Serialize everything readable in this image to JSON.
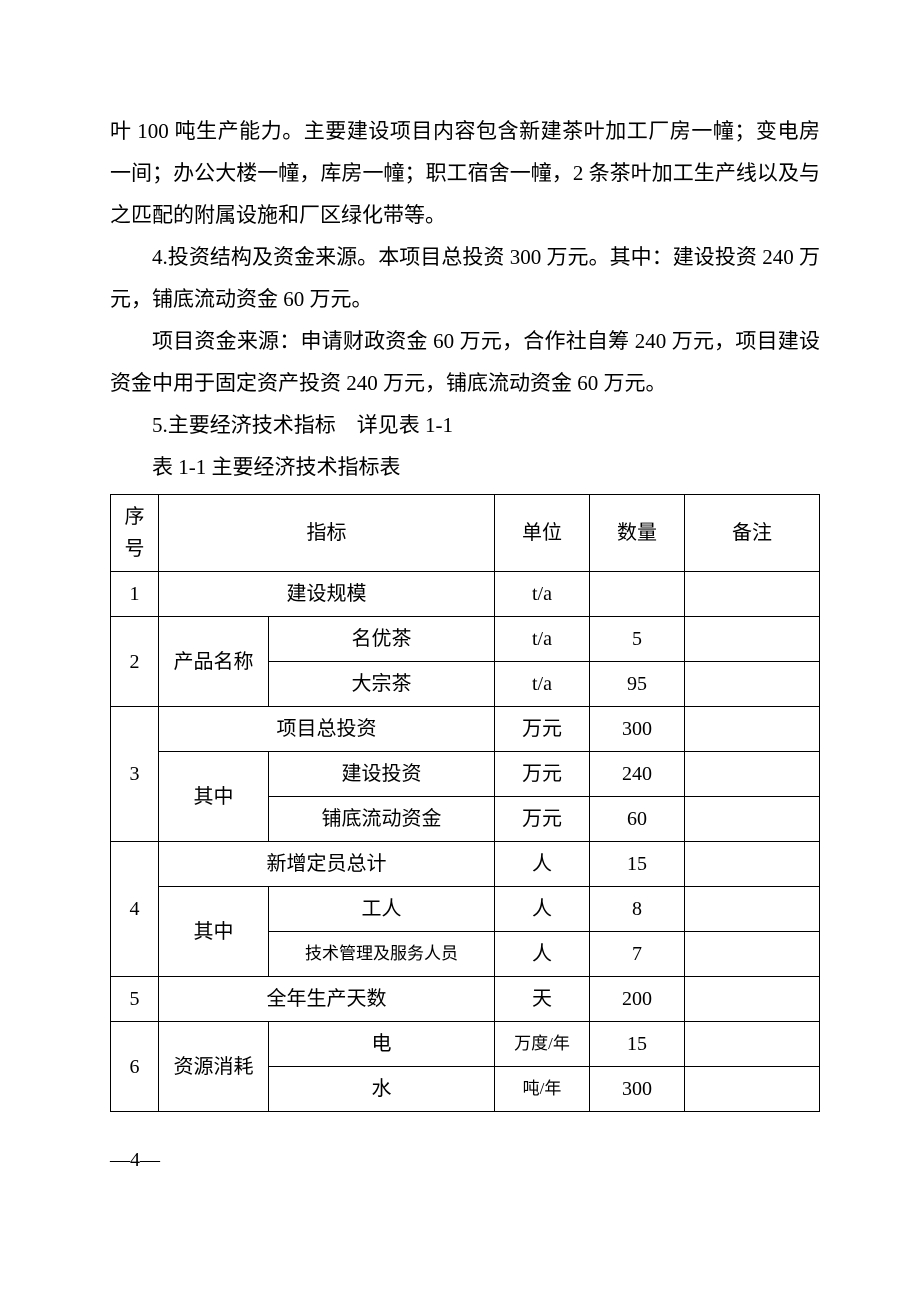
{
  "paragraphs": {
    "p1": "叶 100 吨生产能力。主要建设项目内容包含新建茶叶加工厂房一幢；变电房一间；办公大楼一幢，库房一幢；职工宿舍一幢，2 条茶叶加工生产线以及与之匹配的附属设施和厂区绿化带等。",
    "p2": "4.投资结构及资金来源。本项目总投资 300 万元。其中：建设投资 240 万元，铺底流动资金 60 万元。",
    "p3": "项目资金来源：申请财政资金 60 万元，合作社自筹 240 万元，项目建设资金中用于固定资产投资 240 万元，铺底流动资金 60 万元。",
    "p4": "5.主要经济技术指标　详见表 1-1",
    "p5": "表 1-1 主要经济技术指标表"
  },
  "table": {
    "headers": {
      "seq": "序号",
      "indicator": "指标",
      "unit": "单位",
      "quantity": "数量",
      "note": "备注"
    },
    "rows": {
      "r1": {
        "seq": "1",
        "indicator": "建设规模",
        "unit": "t/a",
        "qty": "",
        "note": ""
      },
      "r2": {
        "seq": "2",
        "indicator": "产品名称",
        "sub": "名优茶",
        "unit": "t/a",
        "qty": "5",
        "note": ""
      },
      "r3": {
        "sub": "大宗茶",
        "unit": "t/a",
        "qty": "95",
        "note": ""
      },
      "r4": {
        "seq": "3",
        "indicator": "项目总投资",
        "unit": "万元",
        "qty": "300",
        "note": ""
      },
      "r5": {
        "sub_group": "其中",
        "sub": "建设投资",
        "unit": "万元",
        "qty": "240",
        "note": ""
      },
      "r6": {
        "sub": "铺底流动资金",
        "unit": "万元",
        "qty": "60",
        "note": ""
      },
      "r7": {
        "seq": "4",
        "indicator": "新增定员总计",
        "unit": "人",
        "qty": "15",
        "note": ""
      },
      "r8": {
        "sub_group": "其中",
        "sub": "工人",
        "unit": "人",
        "qty": "8",
        "note": ""
      },
      "r9": {
        "sub": "技术管理及服务人员",
        "unit": "人",
        "qty": "7",
        "note": ""
      },
      "r10": {
        "seq": "5",
        "indicator": "全年生产天数",
        "unit": "天",
        "qty": "200",
        "note": ""
      },
      "r11": {
        "seq": "6",
        "indicator": "资源消耗",
        "sub": "电",
        "unit": "万度/年",
        "qty": "15",
        "note": ""
      },
      "r12": {
        "sub": "水",
        "unit": "吨/年",
        "qty": "300",
        "note": ""
      }
    }
  },
  "page_number": "—4—"
}
